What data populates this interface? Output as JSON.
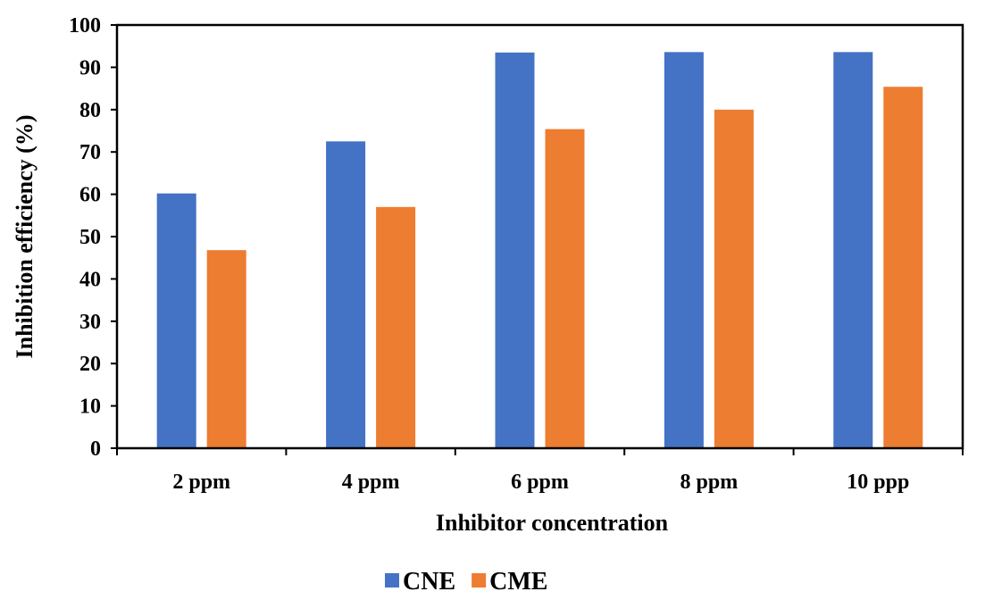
{
  "chart_data": {
    "type": "bar",
    "categories": [
      "2 ppm",
      "4 ppm",
      "6 ppm",
      "8 ppm",
      "10 ppp"
    ],
    "series": [
      {
        "name": "CNE",
        "color": "#4472C4",
        "values": [
          60.2,
          72.5,
          93.5,
          93.6,
          93.6
        ]
      },
      {
        "name": "CME",
        "color": "#ED7D31",
        "values": [
          46.8,
          57.0,
          75.4,
          80.0,
          85.4
        ]
      }
    ],
    "title": "",
    "xlabel": "Inhibitor concentration",
    "ylabel": "Inhibition efficiency (%)",
    "ylim": [
      0,
      100
    ],
    "yticks": [
      "0",
      "10",
      "20",
      "30",
      "40",
      "50",
      "60",
      "70",
      "80",
      "90",
      "100"
    ],
    "grid": false,
    "legend": "bottom"
  }
}
